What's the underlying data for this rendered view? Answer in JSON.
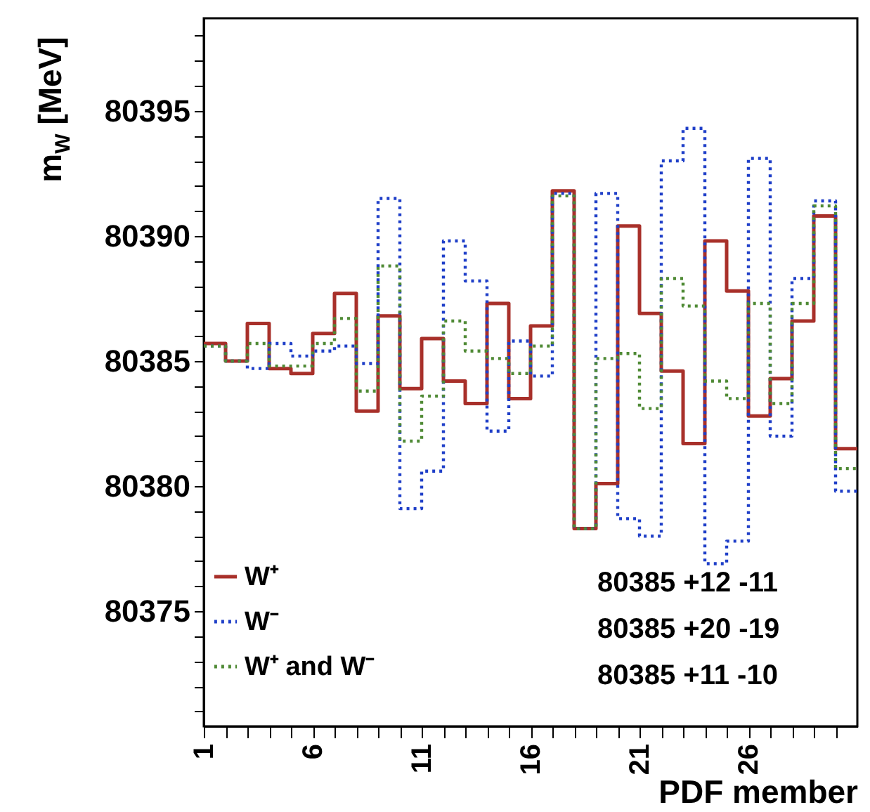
{
  "chart_data": {
    "type": "histogram",
    "bins": [
      1,
      2,
      3,
      4,
      5,
      6,
      7,
      8,
      9,
      10,
      11,
      12,
      13,
      14,
      15,
      16,
      17,
      18,
      19,
      20,
      21,
      22,
      23,
      24,
      25,
      26,
      27,
      28,
      29,
      30,
      31
    ],
    "xlabel": "PDF member",
    "ylabel": "m$_{W}$ [MeV]",
    "xlim": [
      1,
      31
    ],
    "xticks": [
      1,
      {
        "value": 2,
        "label": null
      },
      {
        "value": 3,
        "label": null
      },
      {
        "value": 4,
        "label": null
      },
      {
        "value": 5,
        "label": null
      },
      6,
      {
        "value": 7,
        "label": null
      },
      {
        "value": 8,
        "label": null
      },
      {
        "value": 9,
        "label": null
      },
      {
        "value": 10,
        "label": null
      },
      11,
      {
        "value": 12,
        "label": null
      },
      {
        "value": 13,
        "label": null
      },
      {
        "value": 14,
        "label": null
      },
      {
        "value": 15,
        "label": null
      },
      16,
      {
        "value": 17,
        "label": null
      },
      {
        "value": 18,
        "label": null
      },
      {
        "value": 19,
        "label": null
      },
      {
        "value": 20,
        "label": null
      },
      21,
      {
        "value": 22,
        "label": null
      },
      {
        "value": 23,
        "label": null
      },
      {
        "value": 24,
        "label": null
      },
      {
        "value": 25,
        "label": null
      },
      26,
      {
        "value": 27,
        "label": null
      },
      {
        "value": 28,
        "label": null
      },
      {
        "value": 29,
        "label": null
      },
      {
        "value": 30,
        "label": null
      }
    ],
    "ylim": [
      80370.4,
      80398.7
    ],
    "yticks": [
      {
        "value": 80371,
        "label": null
      },
      {
        "value": 80372,
        "label": null
      },
      {
        "value": 80373,
        "label": null
      },
      {
        "value": 80374,
        "label": null
      },
      80375,
      {
        "value": 80376,
        "label": null
      },
      {
        "value": 80377,
        "label": null
      },
      {
        "value": 80378,
        "label": null
      },
      {
        "value": 80379,
        "label": null
      },
      80380,
      {
        "value": 80381,
        "label": null
      },
      {
        "value": 80382,
        "label": null
      },
      {
        "value": 80383,
        "label": null
      },
      {
        "value": 80384,
        "label": null
      },
      80385,
      {
        "value": 80386,
        "label": null
      },
      {
        "value": 80387,
        "label": null
      },
      {
        "value": 80388,
        "label": null
      },
      {
        "value": 80389,
        "label": null
      },
      80390,
      {
        "value": 80391,
        "label": null
      },
      {
        "value": 80392,
        "label": null
      },
      {
        "value": 80393,
        "label": null
      },
      {
        "value": 80394,
        "label": null
      },
      80395,
      {
        "value": 80396,
        "label": null
      },
      {
        "value": 80397,
        "label": null
      },
      {
        "value": 80398,
        "label": null
      }
    ],
    "grid": false,
    "legend": "bottom left",
    "marker": "none",
    "series": [
      {
        "name": "W⁺",
        "color": "#a8302a",
        "line_style": "solid",
        "values": [
          80385.7,
          80385.0,
          80386.5,
          80384.7,
          80384.5,
          80386.1,
          80387.7,
          80383.0,
          80386.8,
          80383.9,
          80385.9,
          80384.2,
          80383.3,
          80387.3,
          80383.5,
          80386.4,
          80391.8,
          80378.3,
          80380.1,
          80390.4,
          80386.9,
          80384.6,
          80381.7,
          80389.8,
          80387.8,
          80382.8,
          80384.3,
          80386.6,
          80390.8,
          80381.5
        ]
      },
      {
        "name": "W⁻",
        "color": "#1f3fc8",
        "line_style": "dotted",
        "values": [
          80385.6,
          80385.0,
          80384.7,
          80385.7,
          80385.2,
          80385.4,
          80385.6,
          80384.9,
          80391.5,
          80379.1,
          80380.6,
          80389.8,
          80388.2,
          80382.2,
          80385.8,
          80384.4,
          80391.7,
          80378.3,
          80391.7,
          80378.7,
          80378.0,
          80393.0,
          80394.3,
          80376.9,
          80377.8,
          80393.1,
          80382.0,
          80388.3,
          80391.4,
          80379.8
        ]
      },
      {
        "name": "W⁺ and W⁻",
        "color": "#4f8a35",
        "line_style": "dotted",
        "values": [
          80385.6,
          80385.0,
          80385.7,
          80384.8,
          80384.8,
          80385.7,
          80386.7,
          80383.8,
          80388.8,
          80381.8,
          80383.6,
          80386.6,
          80385.4,
          80385.1,
          80384.5,
          80385.6,
          80391.6,
          80378.3,
          80385.1,
          80385.3,
          80383.1,
          80388.3,
          80387.2,
          80384.2,
          80383.5,
          80387.3,
          80383.3,
          80387.3,
          80391.2,
          80380.7
        ]
      }
    ],
    "annotations": [
      "80385 +12 -11",
      "80385 +20 -19",
      "80385 +11 -10"
    ]
  }
}
